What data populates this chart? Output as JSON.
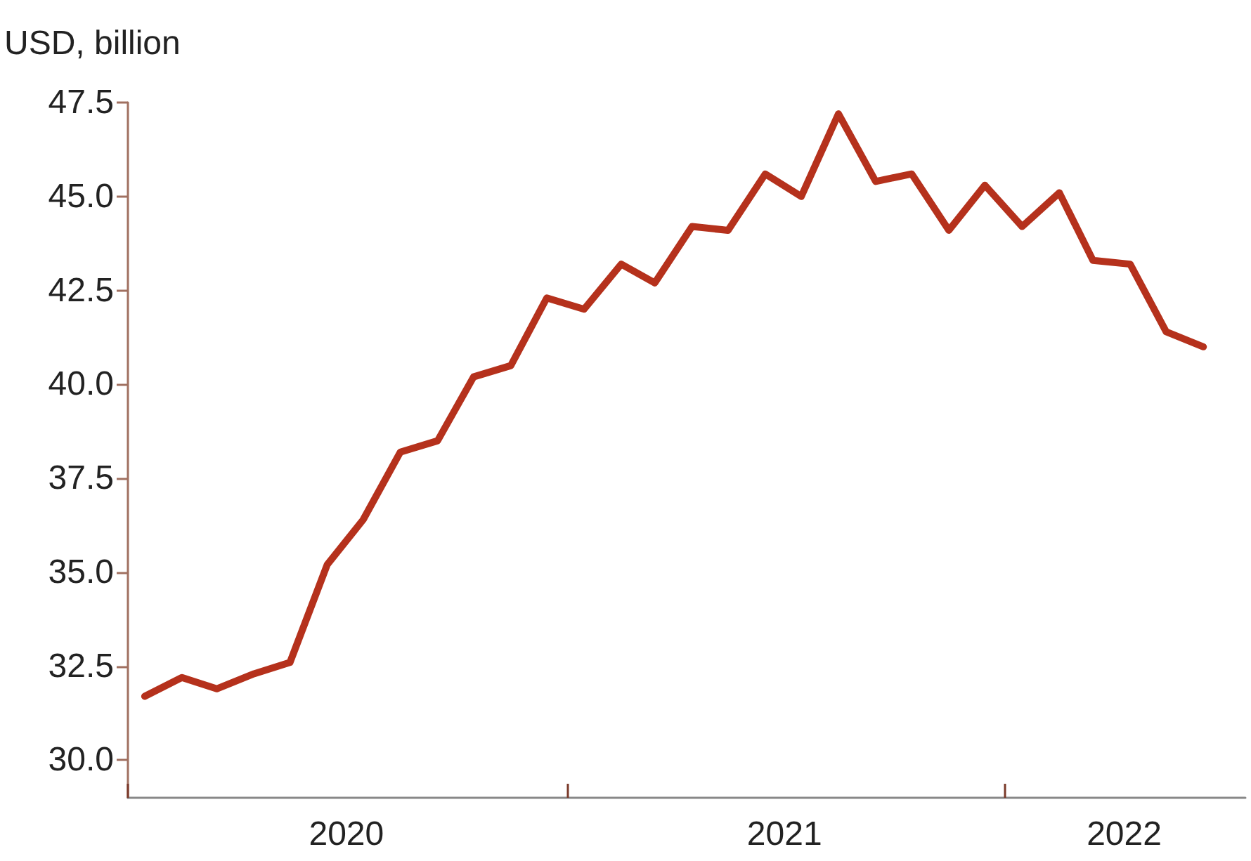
{
  "chart_data": {
    "type": "line",
    "ylabel": "USD, billion",
    "x": [
      "2020-01-15",
      "2020-02-15",
      "2020-03-15",
      "2020-04-15",
      "2020-05-15",
      "2020-06-15",
      "2020-07-15",
      "2020-08-15",
      "2020-09-15",
      "2020-10-15",
      "2020-11-15",
      "2020-12-15",
      "2021-01-15",
      "2021-02-15",
      "2021-03-15",
      "2021-04-15",
      "2021-05-15",
      "2021-06-15",
      "2021-07-15",
      "2021-08-15",
      "2021-09-15",
      "2021-10-15",
      "2021-11-15",
      "2021-12-15",
      "2022-01-15",
      "2022-02-15",
      "2022-03-15",
      "2022-04-15",
      "2022-05-15",
      "2022-06-15"
    ],
    "series": [
      {
        "color": "#b5311c",
        "values": [
          31.7,
          32.2,
          31.9,
          32.3,
          32.6,
          35.2,
          36.4,
          38.2,
          38.5,
          40.2,
          40.5,
          42.3,
          42.0,
          43.2,
          42.7,
          44.2,
          44.1,
          45.6,
          45.0,
          47.2,
          45.4,
          45.6,
          44.1,
          45.3,
          44.2,
          45.1,
          43.3,
          43.2,
          41.4,
          41.0
        ]
      }
    ],
    "xlim": [
      "2020-01-01",
      "2022-07-20"
    ],
    "xticks": [
      {
        "value": "2020-01-01",
        "label": null
      },
      {
        "value": "2020-07-01",
        "label": "2020"
      },
      {
        "value": "2021-01-01",
        "label": null
      },
      {
        "value": "2021-07-01",
        "label": "2021"
      },
      {
        "value": "2022-01-01",
        "label": null
      },
      {
        "value": "2022-04-10",
        "label": "2022"
      }
    ],
    "ylim": [
      29,
      47.5
    ],
    "yticks": [
      {
        "value": 30,
        "label": "30.0"
      },
      32.5,
      {
        "value": 35,
        "label": "35.0"
      },
      37.5,
      {
        "value": 40,
        "label": "40.0"
      },
      42.5,
      {
        "value": 45,
        "label": "45.0"
      },
      47.5
    ],
    "grid": false,
    "marker": "none",
    "line_style": "solid"
  }
}
